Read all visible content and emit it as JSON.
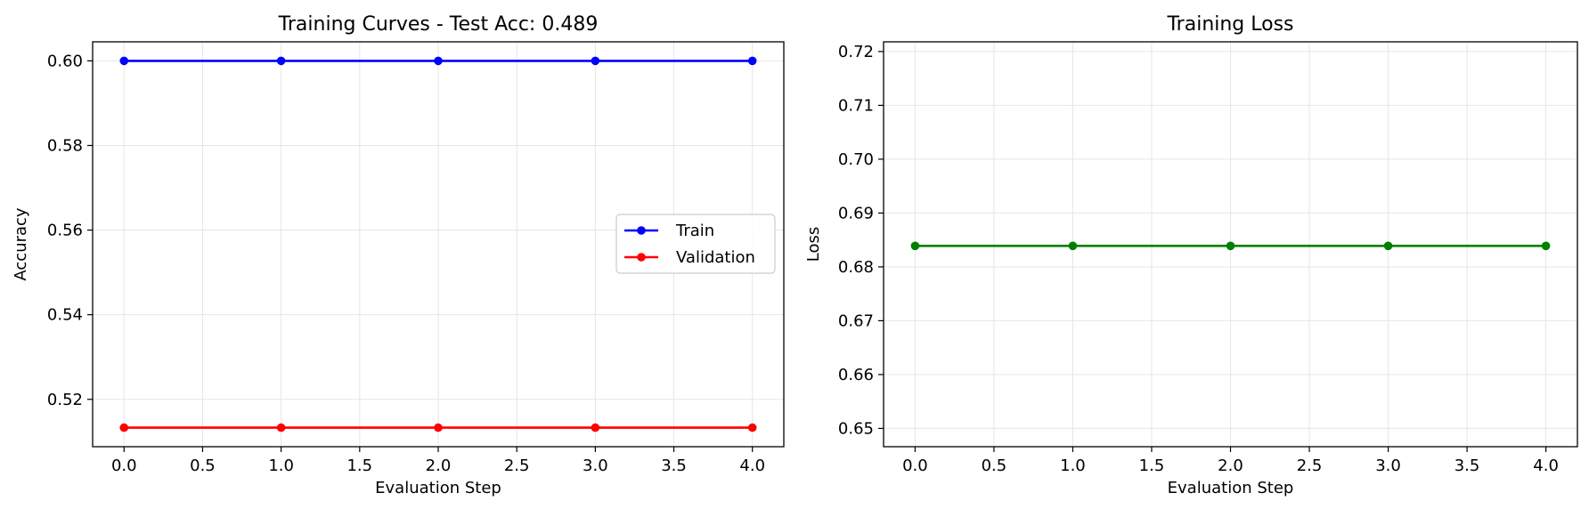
{
  "chart_data": [
    {
      "type": "line",
      "title": "Training Curves - Test Acc: 0.489",
      "xlabel": "Evaluation Step",
      "ylabel": "Accuracy",
      "x": [
        0,
        1,
        2,
        3,
        4
      ],
      "xlim": [
        -0.2,
        4.2
      ],
      "ylim": [
        0.5088,
        0.6045
      ],
      "xticks": [
        "0.0",
        "0.5",
        "1.0",
        "1.5",
        "2.0",
        "2.5",
        "3.0",
        "3.5",
        "4.0"
      ],
      "yticks": [
        "0.52",
        "0.54",
        "0.56",
        "0.58",
        "0.60"
      ],
      "grid": true,
      "legend_position": "center-right",
      "series": [
        {
          "name": "Train",
          "color": "#0000ff",
          "values": [
            0.6,
            0.6,
            0.6,
            0.6,
            0.6
          ]
        },
        {
          "name": "Validation",
          "color": "#ff0000",
          "values": [
            0.5133,
            0.5133,
            0.5133,
            0.5133,
            0.5133
          ]
        }
      ]
    },
    {
      "type": "line",
      "title": "Training Loss",
      "xlabel": "Evaluation Step",
      "ylabel": "Loss",
      "x": [
        0,
        1,
        2,
        3,
        4
      ],
      "xlim": [
        -0.2,
        4.2
      ],
      "ylim": [
        0.6466,
        0.7218
      ],
      "xticks": [
        "0.0",
        "0.5",
        "1.0",
        "1.5",
        "2.0",
        "2.5",
        "3.0",
        "3.5",
        "4.0"
      ],
      "yticks": [
        "0.65",
        "0.66",
        "0.67",
        "0.68",
        "0.69",
        "0.70",
        "0.71",
        "0.72"
      ],
      "grid": true,
      "series": [
        {
          "color": "#008000",
          "values": [
            0.6839,
            0.6839,
            0.6839,
            0.6839,
            0.6839
          ]
        }
      ]
    }
  ]
}
